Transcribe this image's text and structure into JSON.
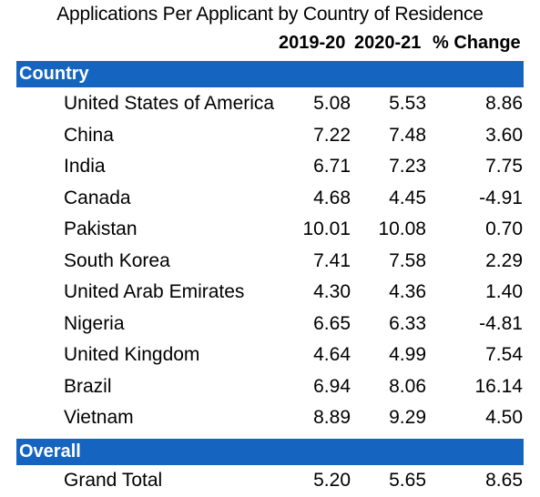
{
  "title": "Applications Per Applicant by Country of Residence",
  "columns": {
    "y1": "2019-20",
    "y2": "2020-21",
    "change": "% Change"
  },
  "sections": {
    "country": "Country",
    "overall": "Overall"
  },
  "rows": [
    {
      "name": "United States of America",
      "y1": "5.08",
      "y2": "5.53",
      "change": "8.86"
    },
    {
      "name": "China",
      "y1": "7.22",
      "y2": "7.48",
      "change": "3.60"
    },
    {
      "name": "India",
      "y1": "6.71",
      "y2": "7.23",
      "change": "7.75"
    },
    {
      "name": "Canada",
      "y1": "4.68",
      "y2": "4.45",
      "change": "-4.91"
    },
    {
      "name": "Pakistan",
      "y1": "10.01",
      "y2": "10.08",
      "change": "0.70"
    },
    {
      "name": "South Korea",
      "y1": "7.41",
      "y2": "7.58",
      "change": "2.29"
    },
    {
      "name": "United Arab Emirates",
      "y1": "4.30",
      "y2": "4.36",
      "change": "1.40"
    },
    {
      "name": "Nigeria",
      "y1": "6.65",
      "y2": "6.33",
      "change": "-4.81"
    },
    {
      "name": "United Kingdom",
      "y1": "4.64",
      "y2": "4.99",
      "change": "7.54"
    },
    {
      "name": "Brazil",
      "y1": "6.94",
      "y2": "8.06",
      "change": "16.14"
    },
    {
      "name": "Vietnam",
      "y1": "8.89",
      "y2": "9.29",
      "change": "4.50"
    }
  ],
  "total": {
    "name": "Grand Total",
    "y1": "5.20",
    "y2": "5.65",
    "change": "8.65"
  }
}
